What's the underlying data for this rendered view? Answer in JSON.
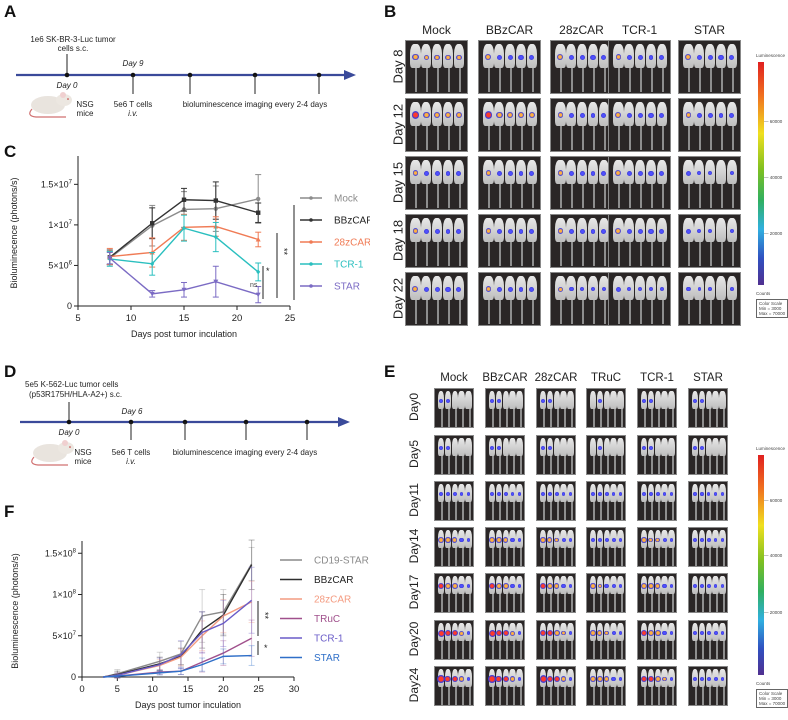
{
  "panels": {
    "A": {
      "letter": "A",
      "injection_text_1": "1e6 SK-BR-3-Luc tumor",
      "injection_text_2": "cells s.c.",
      "day0": "Day 0",
      "day_treat": "Day 9",
      "mouse_label_1": "NSG",
      "mouse_label_2": "mice",
      "tcell_1": "5e6 T cells",
      "tcell_2": "i.v.",
      "imaging": "bioluminescence imaging every 2-4 days"
    },
    "B": {
      "letter": "B",
      "columns": [
        "Mock",
        "BBzCAR",
        "28zCAR",
        "TCR-1",
        "STAR"
      ],
      "rows": [
        "Day 8",
        "Day 12",
        "Day 15",
        "Day 18",
        "Day 22"
      ],
      "colorbar": {
        "title": "Luminescence",
        "ticks": [
          "60000",
          "40000",
          "20000"
        ],
        "counts": "Counts",
        "scale_line1": "Color Scale",
        "scale_line2": "Min = 3000",
        "scale_line3": "Max = 70000"
      }
    },
    "D": {
      "letter": "D",
      "injection_text_1": "5e5 K-562-Luc tumor cells",
      "injection_text_2": "(p53R175H/HLA-A2+) s.c.",
      "day0": "Day 0",
      "day_treat": "Day 6",
      "mouse_label_1": "NSG",
      "mouse_label_2": "mice",
      "tcell_1": "5e6 T cells",
      "tcell_2": "i.v.",
      "imaging": "bioluminescence imaging every 2-4 days"
    },
    "E": {
      "letter": "E",
      "columns": [
        "Mock",
        "BBzCAR",
        "28zCAR",
        "TRuC",
        "TCR-1",
        "STAR"
      ],
      "rows": [
        "Day0",
        "Day5",
        "Day11",
        "Day14",
        "Day17",
        "Day20",
        "Day24"
      ],
      "colorbar": {
        "title": "Luminescence",
        "ticks": [
          "60000",
          "40000",
          "20000"
        ],
        "counts": "Counts",
        "scale_line1": "Color Scale",
        "scale_line2": "Min = 3000",
        "scale_line3": "Max = 70000"
      }
    }
  },
  "chart_data": [
    {
      "id": "C",
      "letter": "C",
      "type": "line",
      "title": "",
      "xlabel": "Days post tumor inculation",
      "ylabel": "Bioluminecence (photons/s)",
      "xlim": [
        5,
        25
      ],
      "ylim": [
        0,
        18000000
      ],
      "xticks": [
        5,
        10,
        15,
        20,
        25
      ],
      "yticks": [
        0,
        5000000,
        10000000,
        15000000
      ],
      "ytick_labels": [
        "0",
        "5×10^6",
        "1×10^7",
        "1.5×10^7"
      ],
      "legend_position": "right",
      "x": [
        8,
        12,
        15,
        18,
        22
      ],
      "series": [
        {
          "name": "Mock",
          "color": "#8c8c8c",
          "marker": "circle",
          "values": [
            5900000,
            9900000,
            11900000,
            12000000,
            13200000
          ],
          "err": [
            800000,
            2500000,
            2200000,
            2800000,
            3000000
          ]
        },
        {
          "name": "BBzCAR",
          "color": "#333333",
          "marker": "square",
          "values": [
            6000000,
            10200000,
            13100000,
            13000000,
            11500000
          ],
          "err": [
            900000,
            1900000,
            1400000,
            2300000,
            1200000
          ]
        },
        {
          "name": "28zCAR",
          "color": "#f07b55",
          "marker": "triangle",
          "values": [
            6100000,
            6600000,
            9700000,
            9800000,
            8200000
          ],
          "err": [
            1000000,
            1800000,
            1600000,
            1200000,
            900000
          ]
        },
        {
          "name": "TCR-1",
          "color": "#2abfbf",
          "marker": "diamond",
          "values": [
            5800000,
            5200000,
            9600000,
            8500000,
            4200000
          ],
          "err": [
            900000,
            1400000,
            1600000,
            1800000,
            1100000
          ]
        },
        {
          "name": "STAR",
          "color": "#7b6bc4",
          "marker": "triangle-down",
          "values": [
            5900000,
            1500000,
            2000000,
            3000000,
            1400000
          ],
          "err": [
            700000,
            400000,
            900000,
            1900000,
            1000000
          ]
        }
      ],
      "significance": [
        {
          "label": "ns",
          "between": [
            "TCR-1",
            "STAR"
          ]
        },
        {
          "label": "*",
          "between": [
            "TCR-1",
            "STAR"
          ]
        },
        {
          "label": "**",
          "between": [
            "28zCAR",
            "STAR"
          ]
        }
      ]
    },
    {
      "id": "F",
      "letter": "F",
      "type": "line",
      "title": "",
      "xlabel": "Days post tumor inculation",
      "ylabel": "Bioluminescence (photons/s)",
      "xlim": [
        0,
        30
      ],
      "ylim": [
        0,
        160000000
      ],
      "xticks": [
        0,
        5,
        10,
        15,
        20,
        25,
        30
      ],
      "yticks": [
        0,
        50000000,
        100000000,
        150000000
      ],
      "ytick_labels": [
        "0",
        "5×10^7",
        "1×10^8",
        "1.5×10^8"
      ],
      "legend_position": "right",
      "x": [
        3,
        5,
        11,
        14,
        17,
        20,
        24
      ],
      "series": [
        {
          "name": "CD19-STAR",
          "color": "#8a8a8a",
          "values": [
            0,
            4000000,
            19000000,
            28000000,
            74000000,
            79000000,
            137000000
          ],
          "err": [
            0,
            5000000,
            11000000,
            15000000,
            32000000,
            27000000,
            20000000
          ]
        },
        {
          "name": "BBzCAR",
          "color": "#2e2e2e",
          "values": [
            0,
            3000000,
            16000000,
            25000000,
            57000000,
            75000000,
            136000000
          ],
          "err": [
            0,
            4000000,
            8000000,
            10000000,
            22000000,
            25000000,
            30000000
          ]
        },
        {
          "name": "28zCAR",
          "color": "#f49b80",
          "values": [
            0,
            2000000,
            14000000,
            24000000,
            50000000,
            74000000,
            91000000
          ],
          "err": [
            0,
            3000000,
            7000000,
            10000000,
            18000000,
            20000000,
            25000000
          ]
        },
        {
          "name": "TRuC",
          "color": "#a0508c",
          "values": [
            0,
            1000000,
            6000000,
            7000000,
            18000000,
            29000000,
            47000000
          ],
          "err": [
            0,
            2000000,
            3000000,
            4000000,
            12000000,
            15000000,
            22000000
          ]
        },
        {
          "name": "TCR-1",
          "color": "#6a5cc8",
          "values": [
            0,
            2000000,
            15000000,
            27000000,
            54000000,
            65000000,
            93000000
          ],
          "err": [
            0,
            3000000,
            8000000,
            17000000,
            25000000,
            28000000,
            40000000
          ]
        },
        {
          "name": "STAR",
          "color": "#2f6fc8",
          "values": [
            0,
            1000000,
            5000000,
            7000000,
            15000000,
            25000000,
            26000000
          ],
          "err": [
            0,
            1500000,
            2500000,
            4000000,
            8000000,
            9000000,
            12000000
          ]
        }
      ],
      "significance": [
        {
          "label": "**",
          "between": [
            "28zCAR",
            "TRuC"
          ]
        },
        {
          "label": "*",
          "between": [
            "TRuC",
            "STAR"
          ]
        }
      ]
    }
  ]
}
